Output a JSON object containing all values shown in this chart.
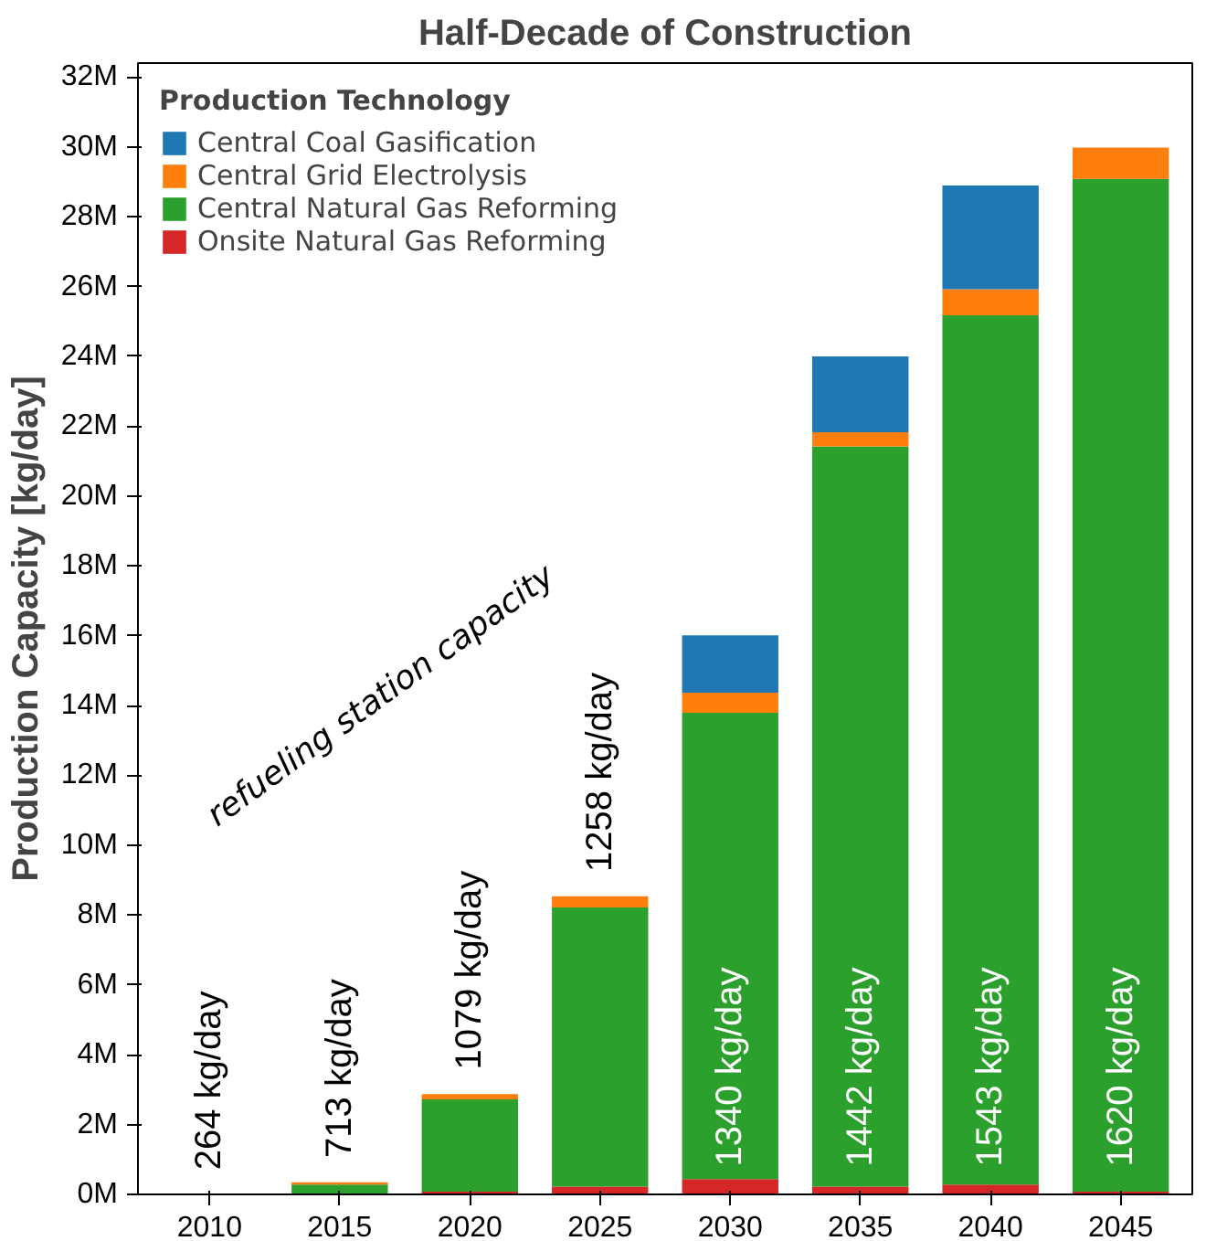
{
  "chart_data": {
    "type": "bar",
    "title": "Half-Decade of Construction",
    "ylabel": "Production Capacity [kg/day]",
    "legend_title": "Production Technology",
    "categories": [
      "2010",
      "2015",
      "2020",
      "2025",
      "2030",
      "2035",
      "2040",
      "2045"
    ],
    "stacked": true,
    "series": [
      {
        "name": "Onsite Natural Gas Reforming",
        "color": "#d62728",
        "values": [
          0,
          0,
          0.08,
          0.22,
          0.44,
          0.22,
          0.28,
          0.08
        ]
      },
      {
        "name": "Central Natural Gas Reforming",
        "color": "#2ca02c",
        "values": [
          0,
          0.28,
          2.64,
          8.0,
          13.35,
          21.2,
          24.9,
          29.0
        ]
      },
      {
        "name": "Central Grid Electrolysis",
        "color": "#ff7f0e",
        "values": [
          0,
          0.07,
          0.15,
          0.32,
          0.58,
          0.41,
          0.74,
          0.9
        ]
      },
      {
        "name": "Central Coal Gasification",
        "color": "#1f77b4",
        "values": [
          0,
          0,
          0,
          0,
          1.64,
          2.17,
          2.97,
          0
        ]
      }
    ],
    "ylim": [
      0,
      32.4
    ],
    "yticks": [
      {
        "value": 0,
        "label": "0M"
      },
      {
        "value": 2,
        "label": "2M"
      },
      {
        "value": 4,
        "label": "4M"
      },
      {
        "value": 6,
        "label": "6M"
      },
      {
        "value": 8,
        "label": "8M"
      },
      {
        "value": 10,
        "label": "10M"
      },
      {
        "value": 12,
        "label": "12M"
      },
      {
        "value": 14,
        "label": "14M"
      },
      {
        "value": 16,
        "label": "16M"
      },
      {
        "value": 18,
        "label": "18M"
      },
      {
        "value": 20,
        "label": "20M"
      },
      {
        "value": 22,
        "label": "22M"
      },
      {
        "value": 24,
        "label": "24M"
      },
      {
        "value": 26,
        "label": "26M"
      },
      {
        "value": 28,
        "label": "28M"
      },
      {
        "value": 30,
        "label": "30M"
      },
      {
        "value": 32,
        "label": "32M"
      }
    ],
    "grid": false,
    "legend": "top left",
    "annotations": [
      "refueling station capacity",
      "264 kg/day",
      "713 kg/day",
      "1079 kg/day",
      "1258 kg/day",
      "1340 kg/day",
      "1442 kg/day",
      "1543 kg/day",
      "1620 kg/day"
    ]
  }
}
